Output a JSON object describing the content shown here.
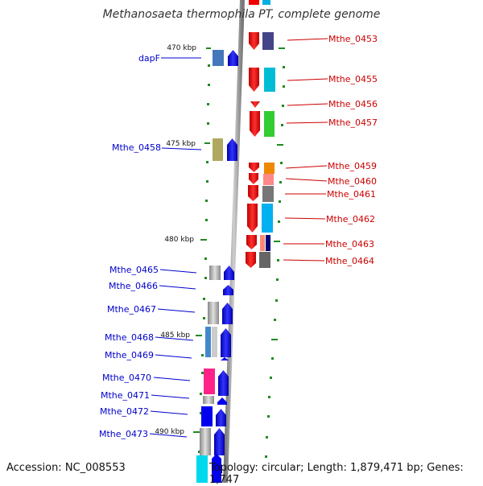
{
  "title": "Methanosaeta thermophila PT, complete genome",
  "footer": {
    "accession": "Accession: NC_008553",
    "topology": "Topology: circular; Length: 1,879,471 bp; Genes: 1,747"
  },
  "ticks": [
    "470 kbp",
    "475 kbp",
    "480 kbp",
    "485 kbp",
    "490 kbp"
  ],
  "genes_right": [
    "Mthe_0453",
    "Mthe_0455",
    "Mthe_0456",
    "Mthe_0457",
    "Mthe_0459",
    "Mthe_0460",
    "Mthe_0461",
    "Mthe_0462",
    "Mthe_0463",
    "Mthe_0464"
  ],
  "genes_left": [
    "dapF",
    "Mthe_0458",
    "Mthe_0465",
    "Mthe_0466",
    "Mthe_0467",
    "Mthe_0468",
    "Mthe_0469",
    "Mthe_0470",
    "Mthe_0471",
    "Mthe_0472",
    "Mthe_0473"
  ],
  "colors": {
    "plus_strand_label": "#0000cc",
    "minus_strand_label": "#cc0000",
    "gene_arrow_left": "#0000ee",
    "gene_arrow_right": "#ee0000",
    "tick": "#228822",
    "backbone": "#888888"
  }
}
